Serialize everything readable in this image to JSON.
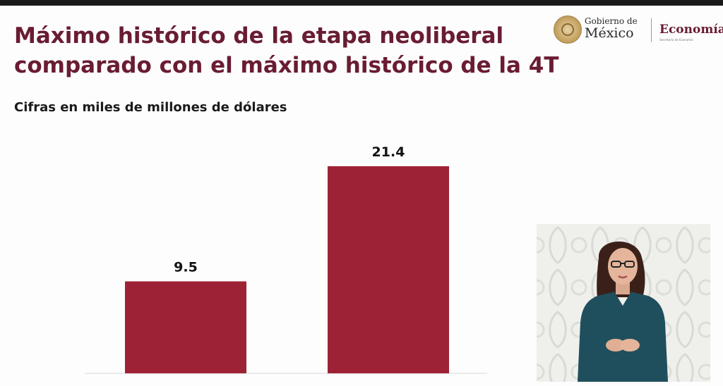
{
  "header": {
    "title_line1": "Máximo histórico de la etapa neoliberal",
    "title_line2": "comparado con el máximo histórico de la 4T",
    "subtitle": "Cifras en miles de millones de dólares"
  },
  "logo": {
    "gob_small": "Gobierno de",
    "gob_big": "México",
    "dependencia": "Economía",
    "dependencia_sub": "Secretaría de Economía"
  },
  "chart_data": {
    "type": "bar",
    "title": "Máximo histórico de la etapa neoliberal comparado con el máximo histórico de la 4T",
    "subtitle": "Cifras en miles de millones de dólares",
    "categories": [
      "",
      ""
    ],
    "values": [
      9.5,
      21.4
    ],
    "value_labels": [
      "9.5",
      "21.4"
    ],
    "ylim": [
      0,
      21.4
    ],
    "bar_color": "#9e2235",
    "grid": false,
    "legend": "none"
  },
  "colors": {
    "title": "#691c32",
    "bar": "#9e2235"
  },
  "interpreter": {
    "icon": "sign-language-interpreter"
  }
}
